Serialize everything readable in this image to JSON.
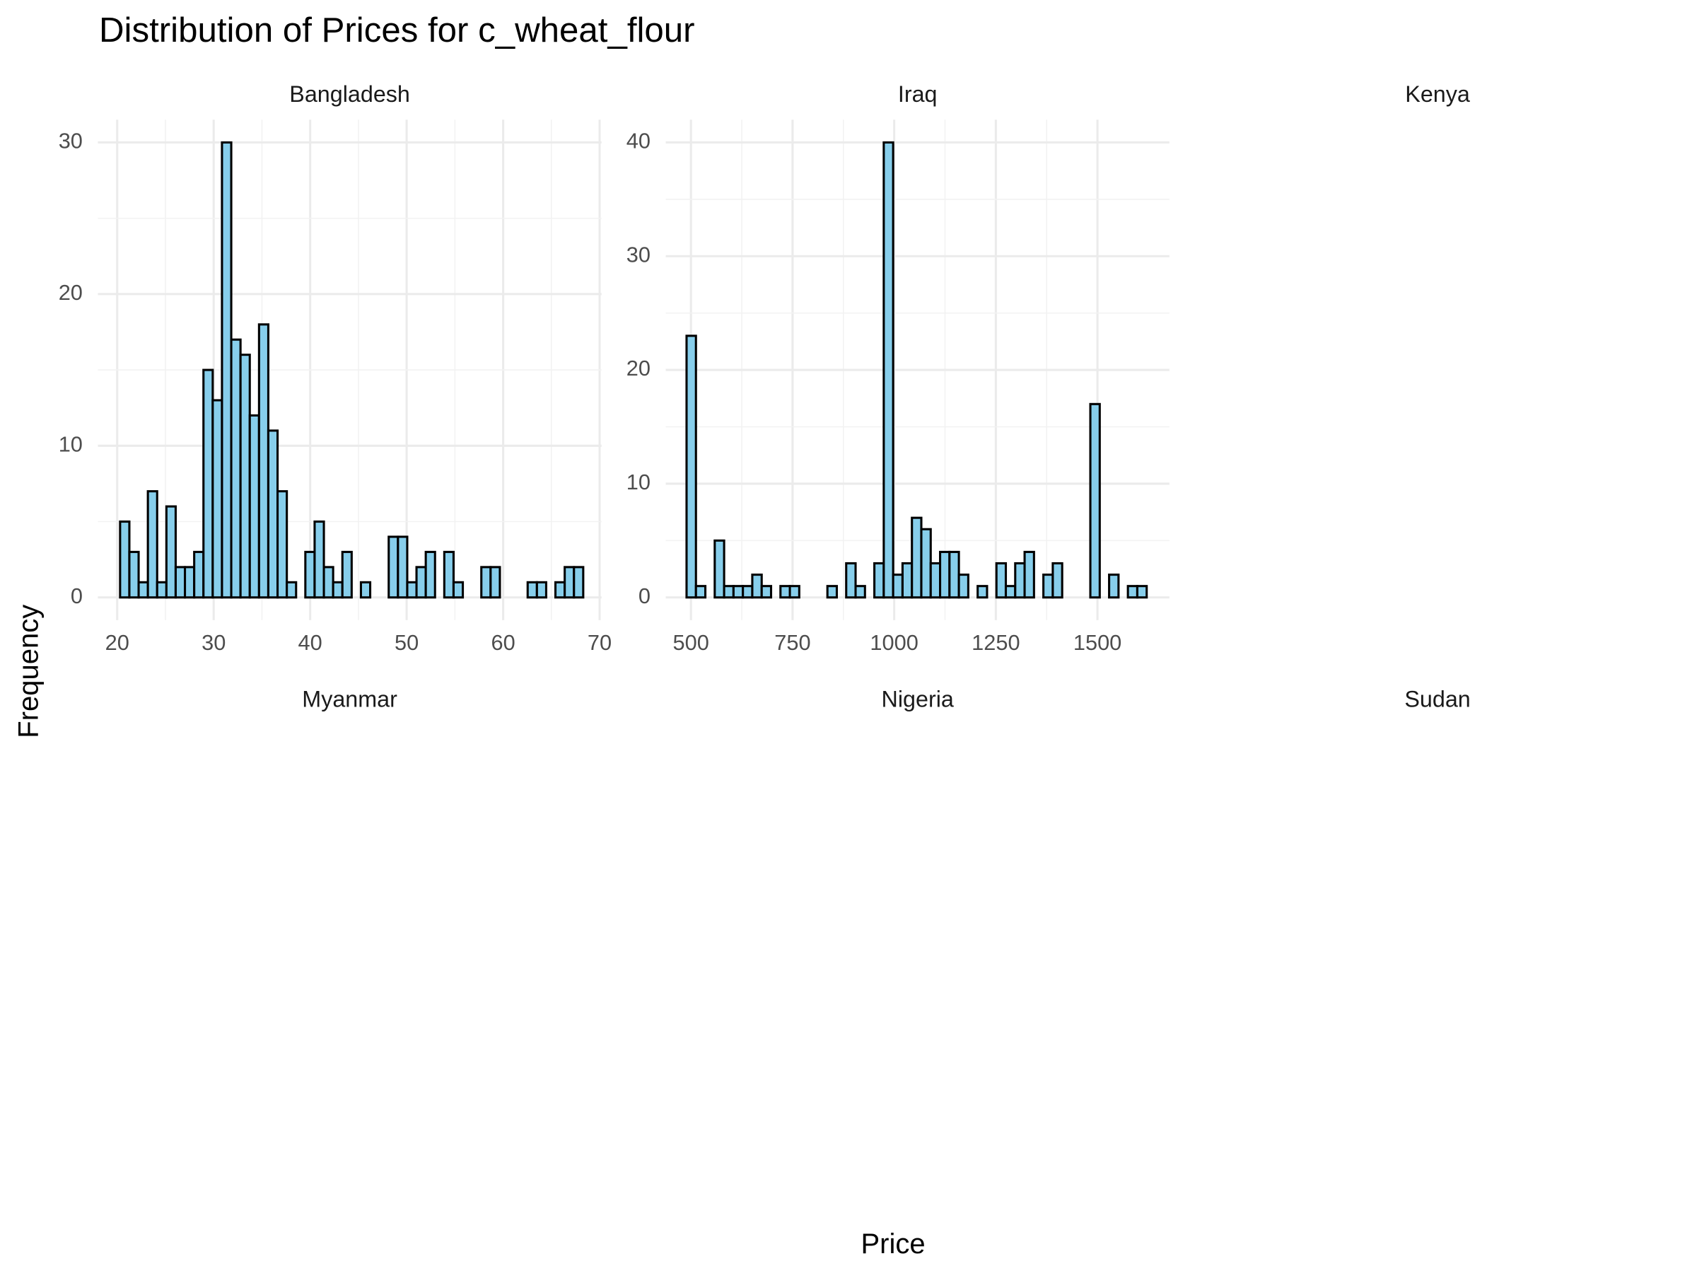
{
  "chart_data": {
    "type": "histogram",
    "title": "Distribution of Prices for c_wheat_flour",
    "xlabel": "Price",
    "ylabel": "Frequency",
    "color": "#87ceeb",
    "edgecolor": "#000000",
    "grid": true,
    "facets": [
      {
        "name": "Bangladesh",
        "bins": [
          20.3,
          21.26,
          22.22,
          23.18,
          24.14,
          25.1,
          26.06,
          27.02,
          27.98,
          28.94,
          29.9,
          30.86,
          31.82,
          32.78,
          33.74,
          34.7,
          35.66,
          36.62,
          37.58,
          38.54,
          39.5,
          40.46,
          41.42,
          42.38,
          43.34,
          44.3,
          45.26,
          46.22,
          47.18,
          48.14,
          49.1,
          50.06,
          51.02,
          51.98,
          52.94,
          53.9,
          54.86,
          55.82,
          56.78,
          57.74,
          58.7,
          59.66,
          60.62,
          61.58,
          62.54,
          63.5,
          64.46,
          65.42,
          66.38,
          67.34,
          68.3
        ],
        "counts": [
          5,
          3,
          1,
          7,
          1,
          6,
          2,
          2,
          3,
          15,
          13,
          30,
          17,
          16,
          12,
          18,
          11,
          7,
          1,
          0,
          3,
          5,
          2,
          1,
          3,
          0,
          1,
          0,
          0,
          4,
          4,
          1,
          2,
          3,
          0,
          3,
          1,
          0,
          0,
          2,
          2,
          0,
          0,
          0,
          1,
          1,
          0,
          1,
          2,
          2
        ],
        "xlim": [
          18,
          70.2
        ],
        "xticks": [
          20,
          30,
          40,
          50,
          60,
          70
        ],
        "ylim": [
          -1.5,
          31.5
        ],
        "yticks": [
          0,
          10,
          20,
          30
        ]
      },
      {
        "name": "Iraq",
        "bins": [
          489.2,
          512.3,
          535.4,
          558.5,
          581.6,
          604.7,
          627.8,
          650.9,
          674,
          697.1,
          720.2,
          743.3,
          766.4,
          789.5,
          812.6,
          835.7,
          858.8,
          881.9,
          905,
          928.1,
          951.2,
          974.3,
          997.4,
          1020.5,
          1043.6,
          1066.7,
          1089.8,
          1112.9,
          1136,
          1159.1,
          1182.2,
          1205.3,
          1228.4,
          1251.5,
          1274.6,
          1297.7,
          1320.8,
          1343.9,
          1367,
          1390.1,
          1413.2,
          1436.3,
          1459.4,
          1482.5,
          1505.6,
          1528.7,
          1551.8,
          1574.9,
          1598,
          1621.1
        ],
        "counts": [
          23,
          1,
          0,
          5,
          1,
          1,
          1,
          2,
          1,
          0,
          1,
          1,
          0,
          0,
          0,
          1,
          0,
          3,
          1,
          0,
          3,
          40,
          2,
          3,
          7,
          6,
          3,
          4,
          4,
          2,
          0,
          1,
          0,
          3,
          1,
          3,
          4,
          0,
          2,
          3,
          0,
          0,
          0,
          17,
          0,
          2,
          0,
          1,
          1
        ],
        "xlim": [
          438,
          1677
        ],
        "xticks": [
          500,
          750,
          1000,
          1250,
          1500
        ],
        "ylim": [
          -2,
          42
        ],
        "yticks": [
          0,
          10,
          20,
          30,
          40
        ]
      },
      {
        "name": "Kenya"
      },
      {
        "name": "Myanmar"
      },
      {
        "name": "Nigeria"
      },
      {
        "name": "Sudan"
      }
    ]
  }
}
